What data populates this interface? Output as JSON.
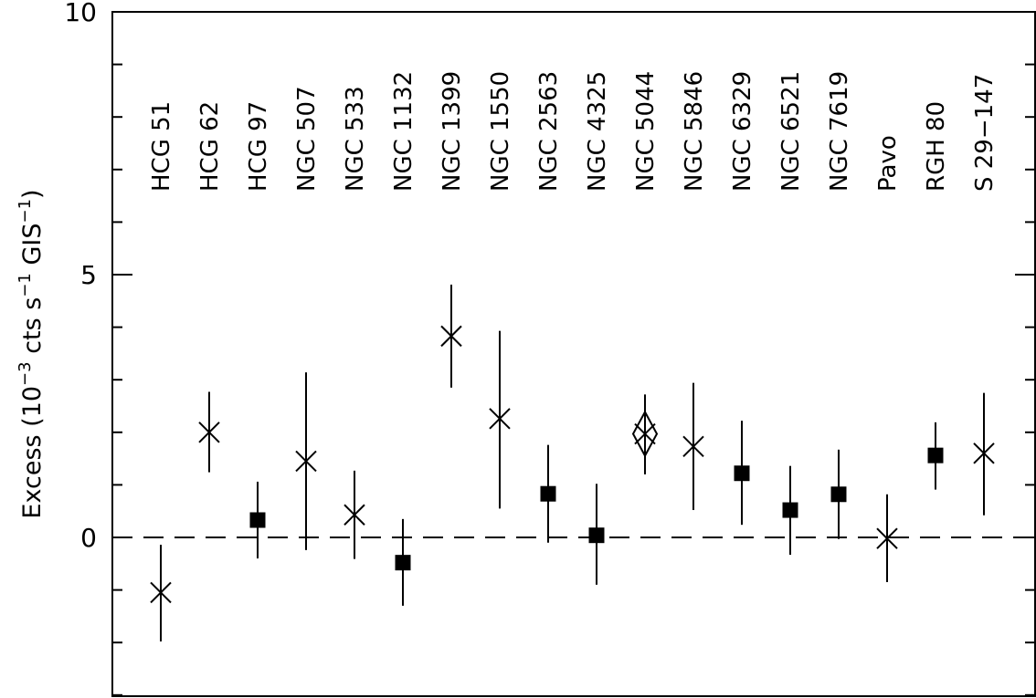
{
  "chart_data": {
    "type": "scatter",
    "ylabel_parts": {
      "prefix": "Excess (10",
      "exp1": "−3",
      "mid1": " cts s",
      "exp2": "−1",
      "mid2": " GIS",
      "exp3": "−1",
      "suffix": ")"
    },
    "yticks": [
      0,
      5,
      10
    ],
    "ylim": [
      -3,
      10
    ],
    "reference_line": 0,
    "grid": false,
    "categories": [
      "HCG 51",
      "HCG 62",
      "HCG 97",
      "NGC 507",
      "NGC 533",
      "NGC 1132",
      "NGC 1399",
      "NGC 1550",
      "NGC 2563",
      "NGC 4325",
      "NGC 5044",
      "NGC 5846",
      "NGC 6329",
      "NGC 6521",
      "NGC 7619",
      "Pavo",
      "RGH 80",
      "S 29−147"
    ],
    "points": [
      {
        "marker": "cross",
        "y": -1.05,
        "low": -1.98,
        "high": -0.14
      },
      {
        "marker": "cross",
        "y": 2.0,
        "low": 1.24,
        "high": 2.77
      },
      {
        "marker": "square",
        "y": 0.33,
        "low": -0.4,
        "high": 1.06
      },
      {
        "marker": "cross",
        "y": 1.45,
        "low": -0.24,
        "high": 3.14
      },
      {
        "marker": "cross",
        "y": 0.43,
        "low": -0.41,
        "high": 1.27
      },
      {
        "marker": "square",
        "y": -0.48,
        "low": -1.3,
        "high": 0.35
      },
      {
        "marker": "cross",
        "y": 3.83,
        "low": 2.85,
        "high": 4.81
      },
      {
        "marker": "cross",
        "y": 2.26,
        "low": 0.55,
        "high": 3.93
      },
      {
        "marker": "square",
        "y": 0.83,
        "low": -0.1,
        "high": 1.76
      },
      {
        "marker": "square",
        "y": 0.04,
        "low": -0.9,
        "high": 1.02
      },
      {
        "marker": "diamond-cross",
        "y": 1.97,
        "low": 1.2,
        "high": 2.72
      },
      {
        "marker": "cross",
        "y": 1.73,
        "low": 0.52,
        "high": 2.94
      },
      {
        "marker": "square",
        "y": 1.22,
        "low": 0.24,
        "high": 2.22
      },
      {
        "marker": "square",
        "y": 0.52,
        "low": -0.33,
        "high": 1.36
      },
      {
        "marker": "square",
        "y": 0.82,
        "low": -0.03,
        "high": 1.67
      },
      {
        "marker": "cross",
        "y": -0.02,
        "low": -0.85,
        "high": 0.82
      },
      {
        "marker": "square",
        "y": 1.56,
        "low": 0.91,
        "high": 2.19
      },
      {
        "marker": "cross",
        "y": 1.6,
        "low": 0.42,
        "high": 2.75
      }
    ]
  }
}
